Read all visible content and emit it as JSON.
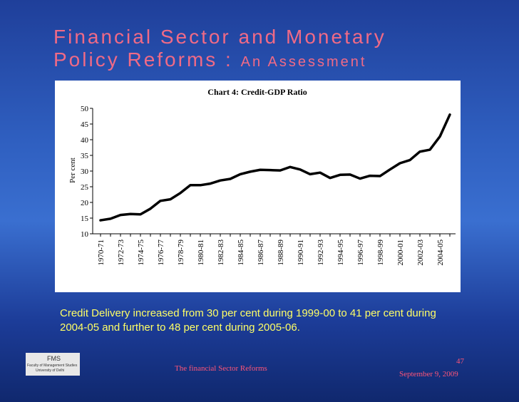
{
  "slide": {
    "title_line1": "Financial Sector and Monetary",
    "title_line2": "Policy Reforms :",
    "title_line2_small": "An Assessment",
    "caption": "Credit Delivery  increased from 30 per cent during 1999-00 to 41 per cent during 2004-05 and further to 48 per cent during 2005-06.",
    "footer": "The financial Sector Reforms",
    "page": "47",
    "date": "September 9, 2009",
    "logo": {
      "abbr": "FMS",
      "name": "Faculty of Management Studies",
      "university": "University of Delhi"
    }
  },
  "chart_data": {
    "type": "line",
    "title": "Chart 4: Credit-GDP Ratio",
    "y_label": "Per cent",
    "categories": [
      "1970-71",
      null,
      "1972-73",
      null,
      "1974-75",
      null,
      "1976-77",
      null,
      "1978-79",
      null,
      "1980-81",
      null,
      "1982-83",
      null,
      "1984-85",
      null,
      "1986-87",
      null,
      "1988-89",
      null,
      "1990-91",
      null,
      "1992-93",
      null,
      "1994-95",
      null,
      "1996-97",
      null,
      "1998-99",
      null,
      "2000-01",
      null,
      "2002-03",
      null,
      "2004-05",
      null
    ],
    "values": [
      14.3,
      14.8,
      16,
      16.3,
      16.2,
      18,
      20.5,
      21,
      23,
      25.5,
      25.5,
      26,
      27,
      27.5,
      29,
      29.8,
      30.4,
      30.3,
      30.2,
      31.3,
      30.5,
      29,
      29.5,
      27.8,
      28.8,
      28.9,
      27.6,
      28.5,
      28.4,
      30.5,
      32.5,
      33.5,
      36.2,
      36.8,
      41,
      48
    ],
    "color": "#000000",
    "ylim": [
      10,
      50
    ],
    "yticks": [
      10,
      15,
      20,
      25,
      30,
      35,
      40,
      45,
      50
    ]
  }
}
